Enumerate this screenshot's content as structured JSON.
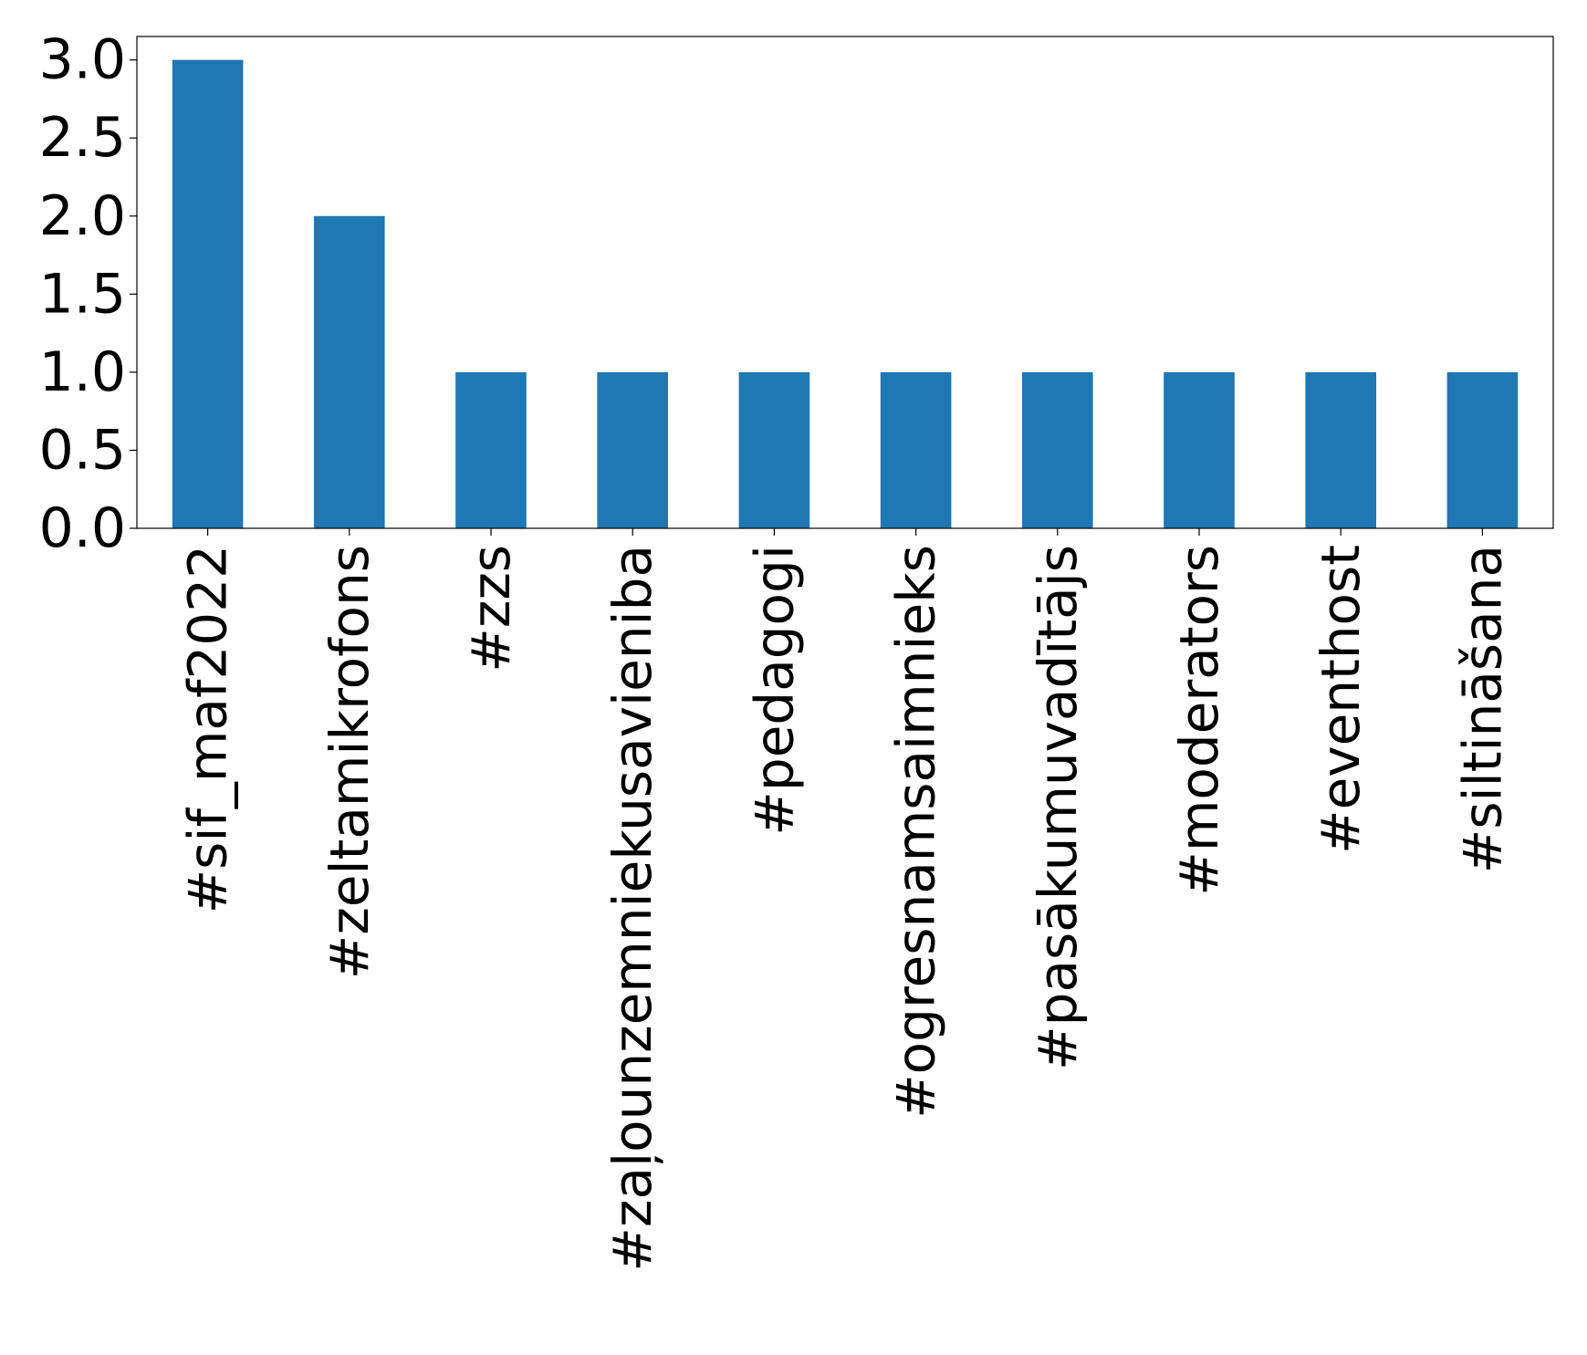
{
  "chart_data": {
    "type": "bar",
    "categories": [
      "#sif_maf2022",
      "#zeltamikrofons",
      "#zzs",
      "#zaļounzemniekusavieniba",
      "#pedagogi",
      "#ogresnamsaimnieks",
      "#pasākumuvadītājs",
      "#moderators",
      "#eventhost",
      "#siltināšana"
    ],
    "values": [
      3,
      2,
      1,
      1,
      1,
      1,
      1,
      1,
      1,
      1
    ],
    "yticks": [
      "0.0",
      "0.5",
      "1.0",
      "1.5",
      "2.0",
      "2.5",
      "3.0"
    ],
    "ylim": [
      0,
      3.15
    ],
    "title": "",
    "xlabel": "",
    "ylabel": "",
    "bar_color": "#1f77b4",
    "grid": false,
    "legend": "none"
  }
}
